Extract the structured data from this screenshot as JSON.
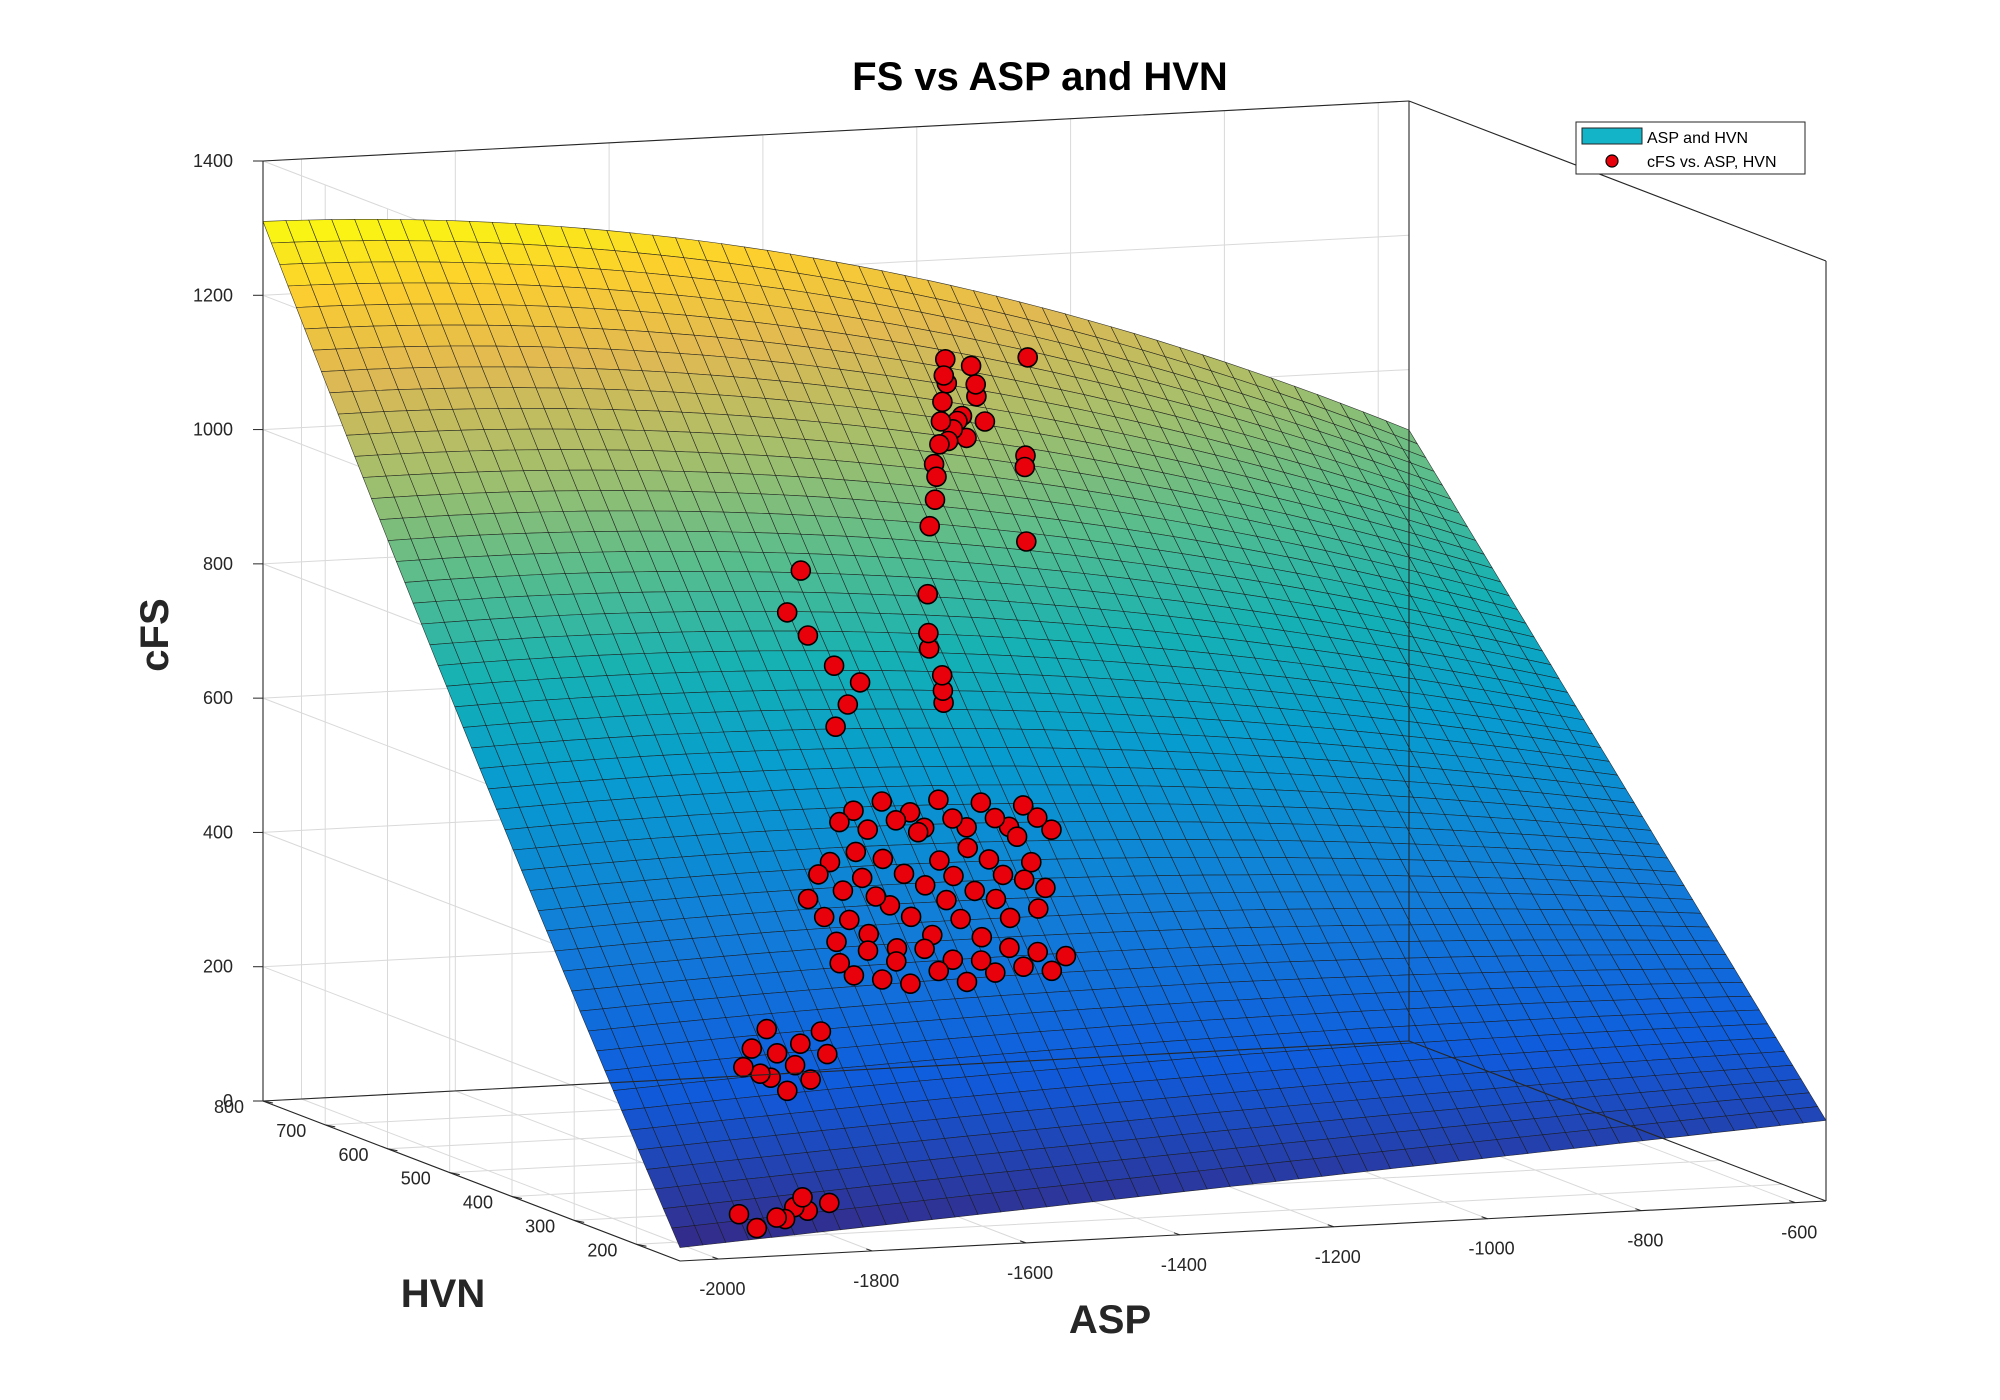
{
  "chart_data": {
    "type": "surface3d",
    "title": "FS vs ASP and HVN",
    "xlabel": "ASP",
    "ylabel": "HVN",
    "zlabel": "cFS",
    "xlim": [
      -2050,
      -560
    ],
    "ylim": [
      130,
      800
    ],
    "zlim": [
      0,
      1400
    ],
    "x_ticks": [
      -2000,
      -1800,
      -1600,
      -1400,
      -1200,
      -1000,
      -800,
      -600
    ],
    "y_ticks": [
      200,
      300,
      400,
      500,
      600,
      700,
      800
    ],
    "z_ticks": [
      0,
      200,
      400,
      600,
      800,
      1000,
      1200,
      1400
    ],
    "grid": true,
    "colormap": "parula",
    "colors": {
      "points": "#e8000b",
      "legend_surface": "#13b3c8"
    },
    "legend": {
      "position": "top-right",
      "entries": [
        {
          "label": "ASP and HVN",
          "marker": "surface-patch"
        },
        {
          "label": "cFS vs. ASP, HVN",
          "marker": "red-circle"
        }
      ]
    },
    "surface": {
      "description": "fitted surface cFS(ASP, HVN)",
      "corners": [
        {
          "ASP": -2050,
          "HVN": 800,
          "cFS": 1310
        },
        {
          "ASP": -2050,
          "HVN": 130,
          "cFS": 20
        },
        {
          "ASP": -560,
          "HVN": 800,
          "cFS": 910
        },
        {
          "ASP": -560,
          "HVN": 130,
          "cFS": 120
        }
      ]
    },
    "series": [
      {
        "name": "cFS vs. ASP, HVN",
        "points": [
          [
            -1934,
            150,
            35
          ],
          [
            -1953,
            155,
            55
          ],
          [
            -1900,
            160,
            45
          ],
          [
            -1885,
            165,
            40
          ],
          [
            -1869,
            170,
            55
          ],
          [
            -1860,
            168,
            70
          ],
          [
            -1850,
            172,
            48
          ],
          [
            -1830,
            162,
            62
          ],
          [
            -1830,
            300,
            215
          ],
          [
            -1815,
            305,
            240
          ],
          [
            -1800,
            310,
            200
          ],
          [
            -1790,
            312,
            265
          ],
          [
            -1780,
            318,
            190
          ],
          [
            -1770,
            320,
            225
          ],
          [
            -1760,
            316,
            170
          ],
          [
            -1745,
            322,
            205
          ],
          [
            -1735,
            326,
            235
          ],
          [
            -1720,
            328,
            180
          ],
          [
            -1705,
            330,
            250
          ],
          [
            -1695,
            332,
            215
          ],
          [
            -1665,
            400,
            420
          ],
          [
            -1650,
            402,
            455
          ],
          [
            -1640,
            405,
            390
          ],
          [
            -1630,
            408,
            470
          ],
          [
            -1620,
            410,
            350
          ],
          [
            -1610,
            412,
            425
          ],
          [
            -1600,
            414,
            380
          ],
          [
            -1590,
            416,
            480
          ],
          [
            -1580,
            418,
            440
          ],
          [
            -1570,
            420,
            355
          ],
          [
            -1560,
            421,
            410
          ],
          [
            -1550,
            422,
            465
          ],
          [
            -1540,
            423,
            395
          ],
          [
            -1530,
            424,
            330
          ],
          [
            -1520,
            425,
            440
          ],
          [
            -1510,
            426,
            375
          ],
          [
            -1500,
            427,
            500
          ],
          [
            -1490,
            428,
            420
          ],
          [
            -1480,
            429,
            345
          ],
          [
            -1470,
            430,
            455
          ],
          [
            -1460,
            431,
            395
          ],
          [
            -1450,
            432,
            430
          ],
          [
            -1440,
            433,
            365
          ],
          [
            -1430,
            434,
            470
          ],
          [
            -1420,
            435,
            405
          ],
          [
            -1410,
            436,
            335
          ],
          [
            -1400,
            437,
            450
          ],
          [
            -1390,
            438,
            390
          ],
          [
            -1380,
            439,
            425
          ],
          [
            -1370,
            440,
            360
          ],
          [
            -1360,
            441,
            480
          ],
          [
            -1350,
            442,
            415
          ],
          [
            -1340,
            443,
            440
          ],
          [
            -1330,
            444,
            370
          ],
          [
            -1320,
            445,
            400
          ],
          [
            -1600,
            430,
            520
          ],
          [
            -1580,
            432,
            535
          ],
          [
            -1560,
            434,
            505
          ],
          [
            -1540,
            436,
            545
          ],
          [
            -1520,
            438,
            515
          ],
          [
            -1500,
            440,
            525
          ],
          [
            -1480,
            442,
            500
          ],
          [
            -1460,
            444,
            540
          ],
          [
            -1440,
            446,
            510
          ],
          [
            -1420,
            448,
            495
          ],
          [
            -1400,
            450,
            530
          ],
          [
            -1380,
            452,
            505
          ],
          [
            -1360,
            454,
            490
          ],
          [
            -1340,
            456,
            520
          ],
          [
            -1320,
            458,
            500
          ],
          [
            -1300,
            460,
            480
          ],
          [
            -1640,
            380,
            330
          ],
          [
            -1620,
            382,
            310
          ],
          [
            -1600,
            384,
            345
          ],
          [
            -1580,
            386,
            300
          ],
          [
            -1560,
            388,
            325
          ],
          [
            -1540,
            390,
            290
          ],
          [
            -1520,
            392,
            340
          ],
          [
            -1500,
            394,
            305
          ],
          [
            -1480,
            396,
            320
          ],
          [
            -1460,
            398,
            285
          ],
          [
            -1440,
            400,
            315
          ],
          [
            -1420,
            402,
            295
          ],
          [
            -1400,
            404,
            330
          ],
          [
            -1380,
            406,
            300
          ],
          [
            -1360,
            408,
            320
          ],
          [
            -1340,
            410,
            290
          ],
          [
            -1320,
            412,
            310
          ],
          [
            -1595,
            520,
            800
          ],
          [
            -1560,
            530,
            760
          ],
          [
            -1545,
            560,
            845
          ],
          [
            -1530,
            525,
            715
          ],
          [
            -1520,
            535,
            620
          ],
          [
            -1500,
            540,
            650
          ],
          [
            -1480,
            545,
            680
          ],
          [
            -1380,
            560,
            800
          ],
          [
            -1375,
            565,
            740
          ],
          [
            -1370,
            570,
            715
          ],
          [
            -1345,
            580,
            670
          ],
          [
            -1340,
            585,
            645
          ],
          [
            -1335,
            590,
            625
          ],
          [
            -1345,
            600,
            885
          ],
          [
            -1330,
            610,
            920
          ],
          [
            -1320,
            620,
            950
          ],
          [
            -1315,
            630,
            965
          ],
          [
            -1300,
            640,
            990
          ],
          [
            -1290,
            650,
            1020
          ],
          [
            -1280,
            660,
            1045
          ],
          [
            -1270,
            670,
            1080
          ],
          [
            -1260,
            680,
            1100
          ],
          [
            -1250,
            690,
            1060
          ],
          [
            -1240,
            700,
            970
          ],
          [
            -1230,
            705,
            985
          ],
          [
            -1220,
            710,
            995
          ],
          [
            -1210,
            715,
            1000
          ],
          [
            -1200,
            720,
            965
          ],
          [
            -1190,
            725,
            1070
          ],
          [
            -1180,
            730,
            1040
          ],
          [
            -1175,
            735,
            1020
          ],
          [
            -1160,
            740,
            980
          ],
          [
            -1100,
            750,
            905
          ],
          [
            -1095,
            755,
            920
          ],
          [
            -1090,
            760,
            790
          ],
          [
            -1080,
            770,
            1060
          ]
        ]
      }
    ]
  }
}
